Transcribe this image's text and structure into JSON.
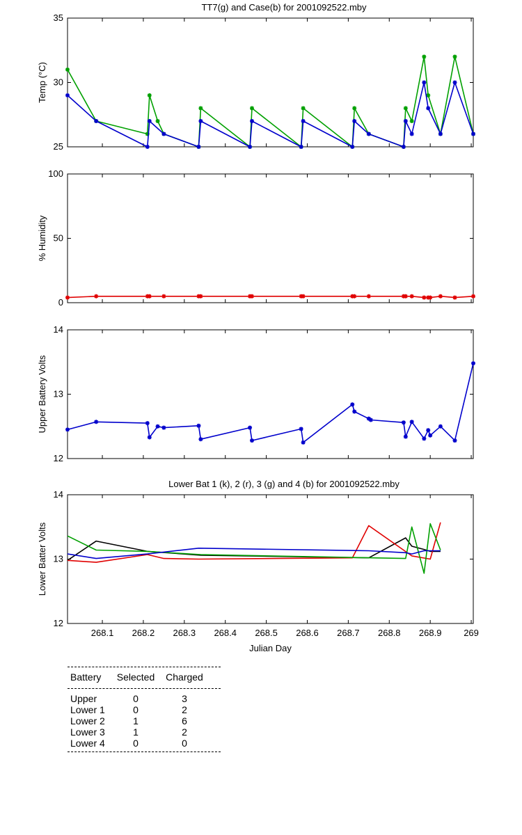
{
  "chart_data": [
    {
      "id": "temp",
      "type": "line",
      "title": "TT7(g) and Case(b) for 2001092522.mby",
      "xlabel": "",
      "ylabel": "Temp  (°C)",
      "xlim": [
        268.015,
        269.005
      ],
      "ylim": [
        25,
        35
      ],
      "yticks": [
        25,
        30,
        35
      ],
      "xticks": [],
      "grid": false,
      "series": [
        {
          "color": "#00a000",
          "marker": "star",
          "x": [
            268.015,
            268.085,
            268.21,
            268.215,
            268.235,
            268.25,
            268.335,
            268.34,
            268.46,
            268.465,
            268.585,
            268.59,
            268.71,
            268.715,
            268.75,
            268.835,
            268.84,
            268.855,
            268.885,
            268.895,
            268.925,
            268.96,
            269.005
          ],
          "y": [
            31,
            27,
            26,
            29,
            27,
            26,
            25,
            28,
            25,
            28,
            25,
            28,
            25,
            28,
            26,
            25,
            28,
            27,
            32,
            29,
            26,
            32,
            26
          ]
        },
        {
          "color": "#0000cc",
          "marker": "star",
          "x": [
            268.015,
            268.085,
            268.21,
            268.215,
            268.25,
            268.335,
            268.34,
            268.46,
            268.465,
            268.585,
            268.59,
            268.71,
            268.715,
            268.75,
            268.835,
            268.84,
            268.855,
            268.885,
            268.895,
            268.925,
            268.96,
            269.005
          ],
          "y": [
            29,
            27,
            25,
            27,
            26,
            25,
            27,
            25,
            27,
            25,
            27,
            25,
            27,
            26,
            25,
            27,
            26,
            30,
            28,
            26,
            30,
            26
          ]
        }
      ]
    },
    {
      "id": "humidity",
      "type": "line",
      "title": "",
      "xlabel": "",
      "ylabel": "% Humidity",
      "xlim": [
        268.015,
        269.005
      ],
      "ylim": [
        0,
        100
      ],
      "yticks": [
        0,
        50,
        100
      ],
      "xticks": [],
      "grid": false,
      "series": [
        {
          "color": "#e00000",
          "marker": "star",
          "x": [
            268.015,
            268.085,
            268.21,
            268.215,
            268.25,
            268.335,
            268.34,
            268.46,
            268.465,
            268.585,
            268.59,
            268.71,
            268.715,
            268.75,
            268.835,
            268.84,
            268.855,
            268.885,
            268.895,
            268.9,
            268.925,
            268.96,
            269.005
          ],
          "y": [
            4,
            5,
            5,
            5,
            5,
            5,
            5,
            5,
            5,
            5,
            5,
            5,
            5,
            5,
            5,
            5,
            5,
            4,
            4,
            4,
            5,
            4,
            5
          ]
        }
      ]
    },
    {
      "id": "upper",
      "type": "line",
      "title": "",
      "xlabel": "",
      "ylabel": "Upper Battery Volts",
      "xlim": [
        268.015,
        269.005
      ],
      "ylim": [
        12,
        14
      ],
      "yticks": [
        12,
        13,
        14
      ],
      "xticks": [],
      "grid": false,
      "series": [
        {
          "color": "#0000cc",
          "marker": "star",
          "x": [
            268.015,
            268.085,
            268.21,
            268.215,
            268.235,
            268.25,
            268.335,
            268.34,
            268.46,
            268.465,
            268.585,
            268.59,
            268.71,
            268.715,
            268.75,
            268.755,
            268.835,
            268.84,
            268.855,
            268.885,
            268.895,
            268.9,
            268.925,
            268.96,
            269.005
          ],
          "y": [
            12.45,
            12.57,
            12.55,
            12.33,
            12.5,
            12.48,
            12.51,
            12.3,
            12.48,
            12.28,
            12.46,
            12.25,
            12.84,
            12.73,
            12.62,
            12.6,
            12.56,
            12.34,
            12.57,
            12.31,
            12.44,
            12.36,
            12.5,
            12.28,
            13.48
          ]
        }
      ]
    },
    {
      "id": "lower",
      "type": "line",
      "title": "Lower Bat 1 (k), 2 (r), 3 (g) and 4 (b) for 2001092522.mby",
      "xlabel": "Julian Day",
      "ylabel": "Lower Batter Volts",
      "xlim": [
        268.015,
        269.005
      ],
      "ylim": [
        12,
        14
      ],
      "yticks": [
        12,
        13,
        14
      ],
      "xticks": [
        "268.1",
        "268.2",
        "268.3",
        "268.4",
        "268.5",
        "268.6",
        "268.7",
        "268.8",
        "268.9",
        "269"
      ],
      "xtick_values": [
        268.1,
        268.2,
        268.3,
        268.4,
        268.5,
        268.6,
        268.7,
        268.8,
        268.9,
        269.0
      ],
      "grid": false,
      "series": [
        {
          "color": "#000000",
          "marker": "none",
          "x": [
            268.015,
            268.085,
            268.21,
            268.34,
            268.75,
            268.84,
            268.855,
            268.885,
            268.9,
            268.925
          ],
          "y": [
            12.98,
            13.28,
            13.12,
            13.06,
            13.02,
            13.33,
            13.2,
            13.15,
            13.12,
            13.12
          ]
        },
        {
          "color": "#e00000",
          "marker": "none",
          "x": [
            268.015,
            268.085,
            268.21,
            268.25,
            268.335,
            268.71,
            268.75,
            268.855,
            268.9,
            268.925
          ],
          "y": [
            12.98,
            12.95,
            13.07,
            13.01,
            13.0,
            13.02,
            13.52,
            13.05,
            13.0,
            13.57
          ]
        },
        {
          "color": "#00a000",
          "marker": "none",
          "x": [
            268.015,
            268.085,
            268.21,
            268.34,
            268.84,
            268.855,
            268.885,
            268.9,
            268.925
          ],
          "y": [
            13.36,
            13.14,
            13.12,
            13.07,
            13.01,
            13.5,
            12.78,
            13.55,
            13.14
          ]
        },
        {
          "color": "#0000cc",
          "marker": "none",
          "x": [
            268.015,
            268.085,
            268.21,
            268.335,
            268.75,
            268.84,
            268.855,
            268.885,
            268.9,
            268.925
          ],
          "y": [
            13.08,
            13.01,
            13.08,
            13.17,
            13.13,
            13.1,
            13.08,
            13.13,
            13.13,
            13.13
          ]
        }
      ]
    }
  ],
  "table": {
    "headers": [
      "Battery",
      "Selected",
      "Charged"
    ],
    "rows": [
      [
        "Upper",
        "0",
        "3"
      ],
      [
        "Lower 1",
        "0",
        "2"
      ],
      [
        "Lower 2",
        "1",
        "6"
      ],
      [
        "Lower 3",
        "1",
        "2"
      ],
      [
        "Lower 4",
        "0",
        "0"
      ]
    ]
  }
}
